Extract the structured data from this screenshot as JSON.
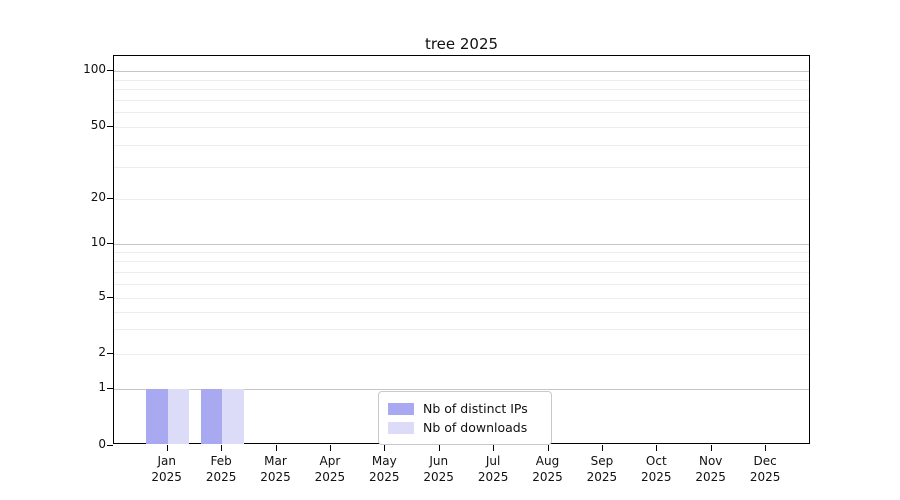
{
  "title": "tree 2025",
  "chart_data": {
    "type": "bar",
    "title": "tree 2025",
    "xlabel": "",
    "ylabel": "",
    "scale": "symlog",
    "grid": "horizontal",
    "year": "2025",
    "categories": [
      "Jan",
      "Feb",
      "Mar",
      "Apr",
      "May",
      "Jun",
      "Jul",
      "Aug",
      "Sep",
      "Oct",
      "Nov",
      "Dec"
    ],
    "yticks": [
      0,
      1,
      2,
      5,
      10,
      20,
      50,
      100
    ],
    "ylim": [
      0,
      100
    ],
    "series": [
      {
        "name": "Nb of distinct IPs",
        "color": "#a9a9f2",
        "values": [
          1,
          1,
          0,
          0,
          0,
          0,
          0,
          0,
          0,
          0,
          0,
          0
        ]
      },
      {
        "name": "Nb of downloads",
        "color": "#dcdcf8",
        "values": [
          1,
          1,
          0,
          0,
          0,
          0,
          0,
          0,
          0,
          0,
          0,
          0
        ]
      }
    ],
    "legend": {
      "position": "bottom-center",
      "entries": [
        "Nb of distinct IPs",
        "Nb of downloads"
      ]
    }
  }
}
